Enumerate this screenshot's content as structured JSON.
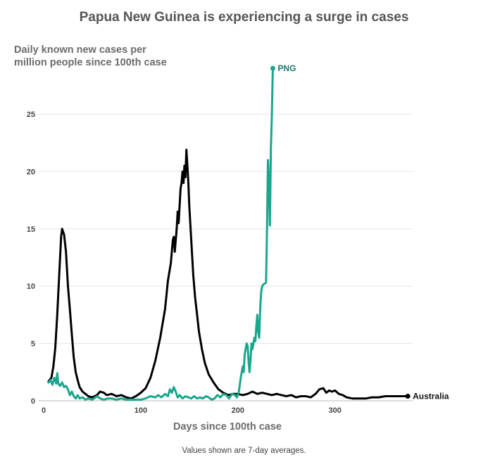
{
  "chart_data": {
    "type": "line",
    "title": "Papua New Guinea is experiencing a surge in cases",
    "ylabel": [
      "Daily known new cases per",
      "million people since 100th case"
    ],
    "xlabel": "Days since 100th case",
    "note": "Values shown are 7-day averages.",
    "xlim": [
      0,
      380
    ],
    "ylim": [
      0,
      29
    ],
    "xticks": [
      0,
      100,
      200,
      300
    ],
    "yticks": [
      0,
      5,
      10,
      15,
      20,
      25
    ],
    "grid": true,
    "series": [
      {
        "name": "Australia",
        "color": "#000000",
        "points": [
          [
            5,
            1.7
          ],
          [
            8,
            2.0
          ],
          [
            10,
            3.0
          ],
          [
            12,
            4.6
          ],
          [
            14,
            7.5
          ],
          [
            16,
            11.0
          ],
          [
            18,
            14.3
          ],
          [
            19,
            15.0
          ],
          [
            21,
            14.5
          ],
          [
            23,
            13.0
          ],
          [
            25,
            10.0
          ],
          [
            27,
            8.0
          ],
          [
            29,
            5.8
          ],
          [
            31,
            3.8
          ],
          [
            33,
            2.5
          ],
          [
            35,
            1.8
          ],
          [
            37,
            1.2
          ],
          [
            40,
            0.8
          ],
          [
            43,
            0.6
          ],
          [
            46,
            0.4
          ],
          [
            50,
            0.3
          ],
          [
            55,
            0.5
          ],
          [
            58,
            0.8
          ],
          [
            62,
            0.7
          ],
          [
            65,
            0.5
          ],
          [
            70,
            0.6
          ],
          [
            75,
            0.4
          ],
          [
            80,
            0.5
          ],
          [
            85,
            0.3
          ],
          [
            90,
            0.2
          ],
          [
            95,
            0.4
          ],
          [
            100,
            0.7
          ],
          [
            105,
            1.1
          ],
          [
            110,
            2.0
          ],
          [
            115,
            3.5
          ],
          [
            120,
            5.5
          ],
          [
            125,
            8.0
          ],
          [
            128,
            10.5
          ],
          [
            131,
            12.0
          ],
          [
            133,
            14.0
          ],
          [
            134,
            14.3
          ],
          [
            135,
            13.0
          ],
          [
            137,
            15.0
          ],
          [
            138,
            16.5
          ],
          [
            139,
            15.5
          ],
          [
            141,
            18.5
          ],
          [
            142,
            19.0
          ],
          [
            143,
            20.0
          ],
          [
            144,
            19.0
          ],
          [
            145,
            20.5
          ],
          [
            146,
            19.5
          ],
          [
            147,
            21.9
          ],
          [
            148,
            20.5
          ],
          [
            149,
            19.0
          ],
          [
            150,
            17.0
          ],
          [
            152,
            14.0
          ],
          [
            154,
            11.0
          ],
          [
            156,
            9.0
          ],
          [
            158,
            7.5
          ],
          [
            160,
            6.0
          ],
          [
            163,
            4.5
          ],
          [
            166,
            3.3
          ],
          [
            170,
            2.3
          ],
          [
            175,
            1.6
          ],
          [
            180,
            1.0
          ],
          [
            185,
            0.7
          ],
          [
            190,
            0.5
          ],
          [
            195,
            0.6
          ],
          [
            200,
            0.6
          ],
          [
            205,
            0.5
          ],
          [
            210,
            0.6
          ],
          [
            215,
            0.8
          ],
          [
            220,
            0.6
          ],
          [
            225,
            0.7
          ],
          [
            230,
            0.6
          ],
          [
            235,
            0.5
          ],
          [
            240,
            0.6
          ],
          [
            245,
            0.5
          ],
          [
            250,
            0.4
          ],
          [
            255,
            0.5
          ],
          [
            260,
            0.3
          ],
          [
            265,
            0.4
          ],
          [
            270,
            0.4
          ],
          [
            275,
            0.3
          ],
          [
            280,
            0.6
          ],
          [
            284,
            1.0
          ],
          [
            288,
            1.1
          ],
          [
            291,
            0.7
          ],
          [
            294,
            0.9
          ],
          [
            297,
            0.8
          ],
          [
            300,
            0.9
          ],
          [
            304,
            0.6
          ],
          [
            308,
            0.5
          ],
          [
            312,
            0.3
          ],
          [
            318,
            0.2
          ],
          [
            325,
            0.2
          ],
          [
            332,
            0.2
          ],
          [
            338,
            0.3
          ],
          [
            345,
            0.3
          ],
          [
            352,
            0.4
          ],
          [
            360,
            0.4
          ],
          [
            368,
            0.4
          ],
          [
            375,
            0.4
          ]
        ]
      },
      {
        "name": "PNG",
        "color": "#1aa68d",
        "points": [
          [
            5,
            1.6
          ],
          [
            7,
            1.8
          ],
          [
            9,
            1.4
          ],
          [
            11,
            2.0
          ],
          [
            13,
            1.5
          ],
          [
            14,
            2.4
          ],
          [
            15,
            1.5
          ],
          [
            17,
            1.3
          ],
          [
            19,
            1.6
          ],
          [
            21,
            1.2
          ],
          [
            23,
            1.3
          ],
          [
            25,
            1.0
          ],
          [
            27,
            0.5
          ],
          [
            29,
            0.8
          ],
          [
            31,
            0.4
          ],
          [
            33,
            0.2
          ],
          [
            35,
            0.5
          ],
          [
            37,
            0.2
          ],
          [
            40,
            0.3
          ],
          [
            43,
            0.1
          ],
          [
            46,
            0.2
          ],
          [
            50,
            0.1
          ],
          [
            55,
            0.4
          ],
          [
            58,
            0.2
          ],
          [
            62,
            0.1
          ],
          [
            66,
            0.2
          ],
          [
            70,
            0.2
          ],
          [
            75,
            0.1
          ],
          [
            80,
            0.2
          ],
          [
            85,
            0.1
          ],
          [
            90,
            0.1
          ],
          [
            95,
            0.1
          ],
          [
            100,
            0.1
          ],
          [
            105,
            0.2
          ],
          [
            110,
            0.4
          ],
          [
            115,
            0.3
          ],
          [
            118,
            0.5
          ],
          [
            121,
            0.3
          ],
          [
            125,
            0.6
          ],
          [
            128,
            0.4
          ],
          [
            130,
            1.0
          ],
          [
            132,
            0.7
          ],
          [
            134,
            1.2
          ],
          [
            136,
            0.8
          ],
          [
            138,
            0.3
          ],
          [
            140,
            0.5
          ],
          [
            143,
            0.2
          ],
          [
            146,
            0.4
          ],
          [
            149,
            0.3
          ],
          [
            152,
            0.2
          ],
          [
            155,
            0.4
          ],
          [
            158,
            0.2
          ],
          [
            161,
            0.3
          ],
          [
            164,
            0.2
          ],
          [
            167,
            0.4
          ],
          [
            170,
            0.3
          ],
          [
            173,
            0.1
          ],
          [
            176,
            0.2
          ],
          [
            179,
            0.5
          ],
          [
            182,
            0.3
          ],
          [
            185,
            0.6
          ],
          [
            188,
            0.5
          ],
          [
            191,
            0.2
          ],
          [
            194,
            0.6
          ],
          [
            197,
            0.5
          ],
          [
            199,
            0.3
          ],
          [
            201,
            0.8
          ],
          [
            203,
            2.0
          ],
          [
            205,
            3.0
          ],
          [
            206,
            2.5
          ],
          [
            207,
            4.0
          ],
          [
            208,
            4.5
          ],
          [
            209,
            5.0
          ],
          [
            210,
            4.8
          ],
          [
            211,
            3.5
          ],
          [
            212,
            2.5
          ],
          [
            213,
            3.5
          ],
          [
            214,
            5.0
          ],
          [
            215,
            4.5
          ],
          [
            216,
            5.0
          ],
          [
            217,
            5.5
          ],
          [
            218,
            5.2
          ],
          [
            219,
            6.5
          ],
          [
            220,
            7.5
          ],
          [
            221,
            6.0
          ],
          [
            222,
            5.5
          ],
          [
            223,
            8.0
          ],
          [
            224,
            9.5
          ],
          [
            225,
            10.0
          ],
          [
            227,
            10.2
          ],
          [
            229,
            10.3
          ],
          [
            230,
            15.0
          ],
          [
            231,
            21.0
          ],
          [
            232,
            19.0
          ],
          [
            233,
            15.3
          ],
          [
            234,
            22.0
          ],
          [
            235,
            25.0
          ],
          [
            236,
            29.0
          ]
        ]
      }
    ]
  }
}
